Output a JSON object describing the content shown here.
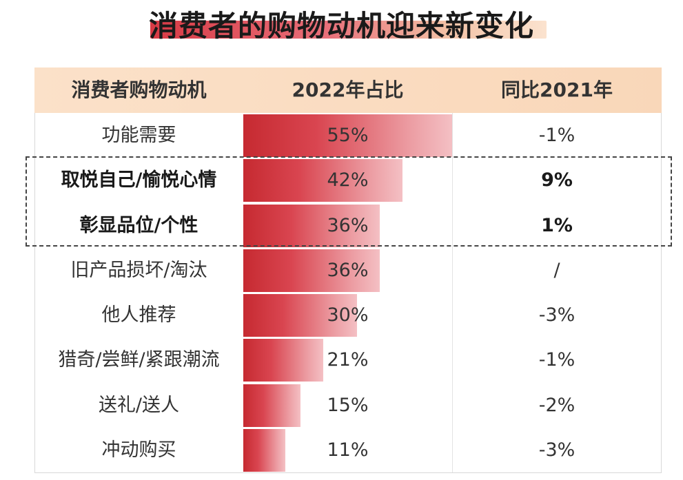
{
  "title": "消费者的购物动机迎来新变化",
  "table": {
    "headers": [
      "消费者购物动机",
      "2022年占比",
      "同比2021年"
    ]
  },
  "chart_data": {
    "type": "bar",
    "orientation": "horizontal",
    "title": "消费者的购物动机迎来新变化",
    "categories": [
      "功能需要",
      "取悦自己/愉悦心情",
      "彰显品位/个性",
      "旧产品损坏/淘汰",
      "他人推荐",
      "猎奇/尝鲜/紧跟潮流",
      "送礼/送人",
      "冲动购买"
    ],
    "series": [
      {
        "name": "2022年占比",
        "values": [
          55,
          42,
          36,
          36,
          30,
          21,
          15,
          11
        ],
        "labels": [
          "55%",
          "42%",
          "36%",
          "36%",
          "30%",
          "21%",
          "15%",
          "11%"
        ]
      }
    ],
    "yoy_column": {
      "name": "同比2021年",
      "labels": [
        "-1%",
        "9%",
        "1%",
        "/",
        "-3%",
        "-1%",
        "-2%",
        "-3%"
      ]
    },
    "highlighted_rows": [
      1,
      2
    ],
    "xlim": [
      0,
      72
    ],
    "colors": {
      "bar_start": "#c62a31",
      "bar_end": "#f4c0c4",
      "header_bg": "#fbe1c9"
    }
  }
}
